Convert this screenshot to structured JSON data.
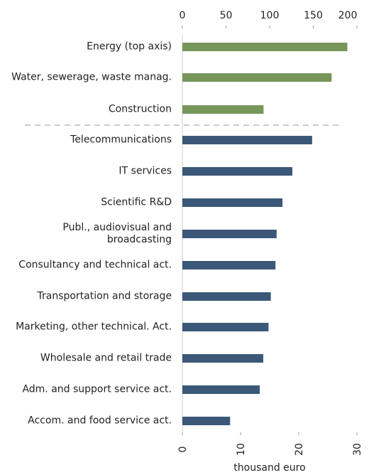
{
  "chart_data": {
    "type": "bar",
    "orientation": "horizontal",
    "categories": [
      "Energy (top axis)",
      "Water, sewerage, waste manag.",
      "Construction",
      "Telecommunications",
      "IT services",
      "Scientific R&D",
      "Publ., audiovisual and broadcasting",
      "Consultancy and technical act.",
      "Transportation and storage",
      "Marketing, other technical. Act.",
      "Wholesale and retail trade",
      "Adm. and support service act.",
      "Accom. and food service act."
    ],
    "series": [
      {
        "color": "#77965a",
        "axis": "x2",
        "values": [
          189,
          171,
          93,
          null,
          null,
          null,
          null,
          null,
          null,
          null,
          null,
          null,
          null
        ]
      },
      {
        "color": "#3b5878",
        "values": [
          null,
          null,
          null,
          22.3,
          18.9,
          17.2,
          16.2,
          16.0,
          15.2,
          14.8,
          13.9,
          13.3,
          8.2
        ]
      }
    ],
    "xlim": [
      0,
      30
    ],
    "xticks": [
      0,
      10,
      20,
      30
    ],
    "x2lim": [
      0,
      200
    ],
    "x2ticks": [
      0,
      50,
      100,
      150,
      200
    ],
    "x_label": "thousand euro"
  }
}
